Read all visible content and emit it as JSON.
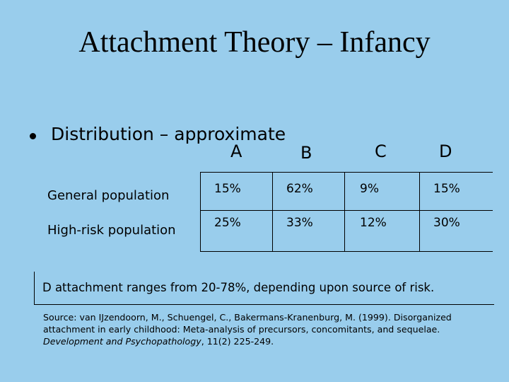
{
  "title": "Attachment Theory – Infancy",
  "bullet": "Distribution – approximate",
  "table": {
    "columns": [
      "A",
      "B",
      "C",
      "D"
    ],
    "rows": [
      {
        "label": "General population",
        "cells": [
          "15%",
          "62%",
          "9%",
          "15%"
        ]
      },
      {
        "label": "High-risk population",
        "cells": [
          "25%",
          "33%",
          "12%",
          "30%"
        ]
      }
    ]
  },
  "note": "D attachment ranges from 20-78%, depending upon source of risk.",
  "source": {
    "lines": [
      "Source: van IJzendoorn, M., Schuengel, C., Bakermans-Kranenburg, M. (1999). Disorganized",
      "attachment in early childhood: Meta-analysis of precursors, concomitants, and sequelae."
    ],
    "journal": "Development and Psychopathology",
    "citation": ", 11(2) 225-249."
  }
}
